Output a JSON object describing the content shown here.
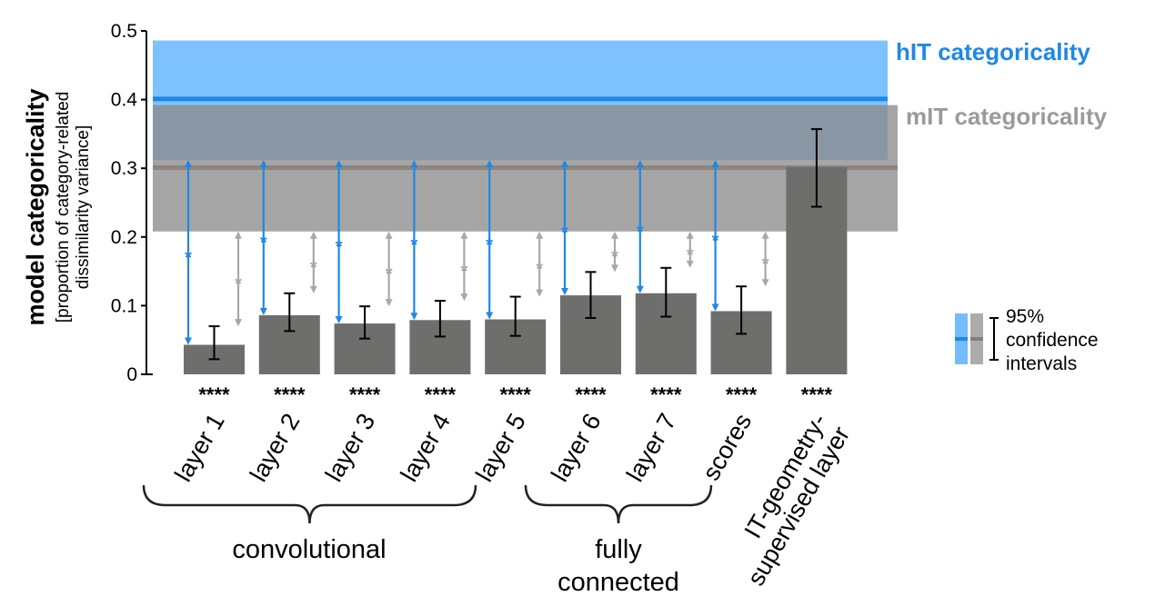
{
  "chart_data": {
    "type": "bar",
    "ylabel": "model categoricality",
    "ylabel_sub": [
      "[proportion of category-related",
      "dissimilarity variance]"
    ],
    "ylim": [
      0,
      0.5
    ],
    "yticks": [
      "0",
      "0.1",
      "0.2",
      "0.3",
      "0.4",
      "0.5"
    ],
    "ytick_values": [
      0,
      0.1,
      0.2,
      0.3,
      0.4,
      0.5
    ],
    "categories": [
      "layer 1",
      "layer 2",
      "layer 3",
      "layer 4",
      "layer 5",
      "layer 6",
      "layer 7",
      "scores",
      "IT-geometry-\nsupervised layer"
    ],
    "values": [
      0.043,
      0.086,
      0.074,
      0.079,
      0.08,
      0.115,
      0.118,
      0.092,
      0.302
    ],
    "error_low": [
      0.022,
      0.063,
      0.052,
      0.055,
      0.056,
      0.082,
      0.084,
      0.059,
      0.244
    ],
    "error_high": [
      0.07,
      0.118,
      0.099,
      0.107,
      0.113,
      0.149,
      0.155,
      0.128,
      0.357
    ],
    "significance": [
      "****",
      "****",
      "****",
      "****",
      "****",
      "****",
      "****",
      "****",
      "****"
    ],
    "diff_marker": "*",
    "reference_lines": [
      {
        "name": "hIT categoricality",
        "value": 0.401,
        "ci": [
          0.312,
          0.486
        ],
        "color": "#1E88E5",
        "band_color": "#5AB0FF"
      },
      {
        "name": "mIT categoricality",
        "value": 0.301,
        "ci": [
          0.208,
          0.392
        ],
        "color": "#9E9E9E",
        "band_color": "#8C8C8C"
      }
    ],
    "groups": [
      {
        "label": "convolutional",
        "lines": [
          "convolutional"
        ]
      },
      {
        "label": "fully connected",
        "lines": [
          "fully",
          "connected"
        ]
      }
    ],
    "legend": {
      "lines": [
        "95%",
        "confidence",
        "intervals"
      ]
    },
    "bar_color": "#6E6E6C"
  }
}
